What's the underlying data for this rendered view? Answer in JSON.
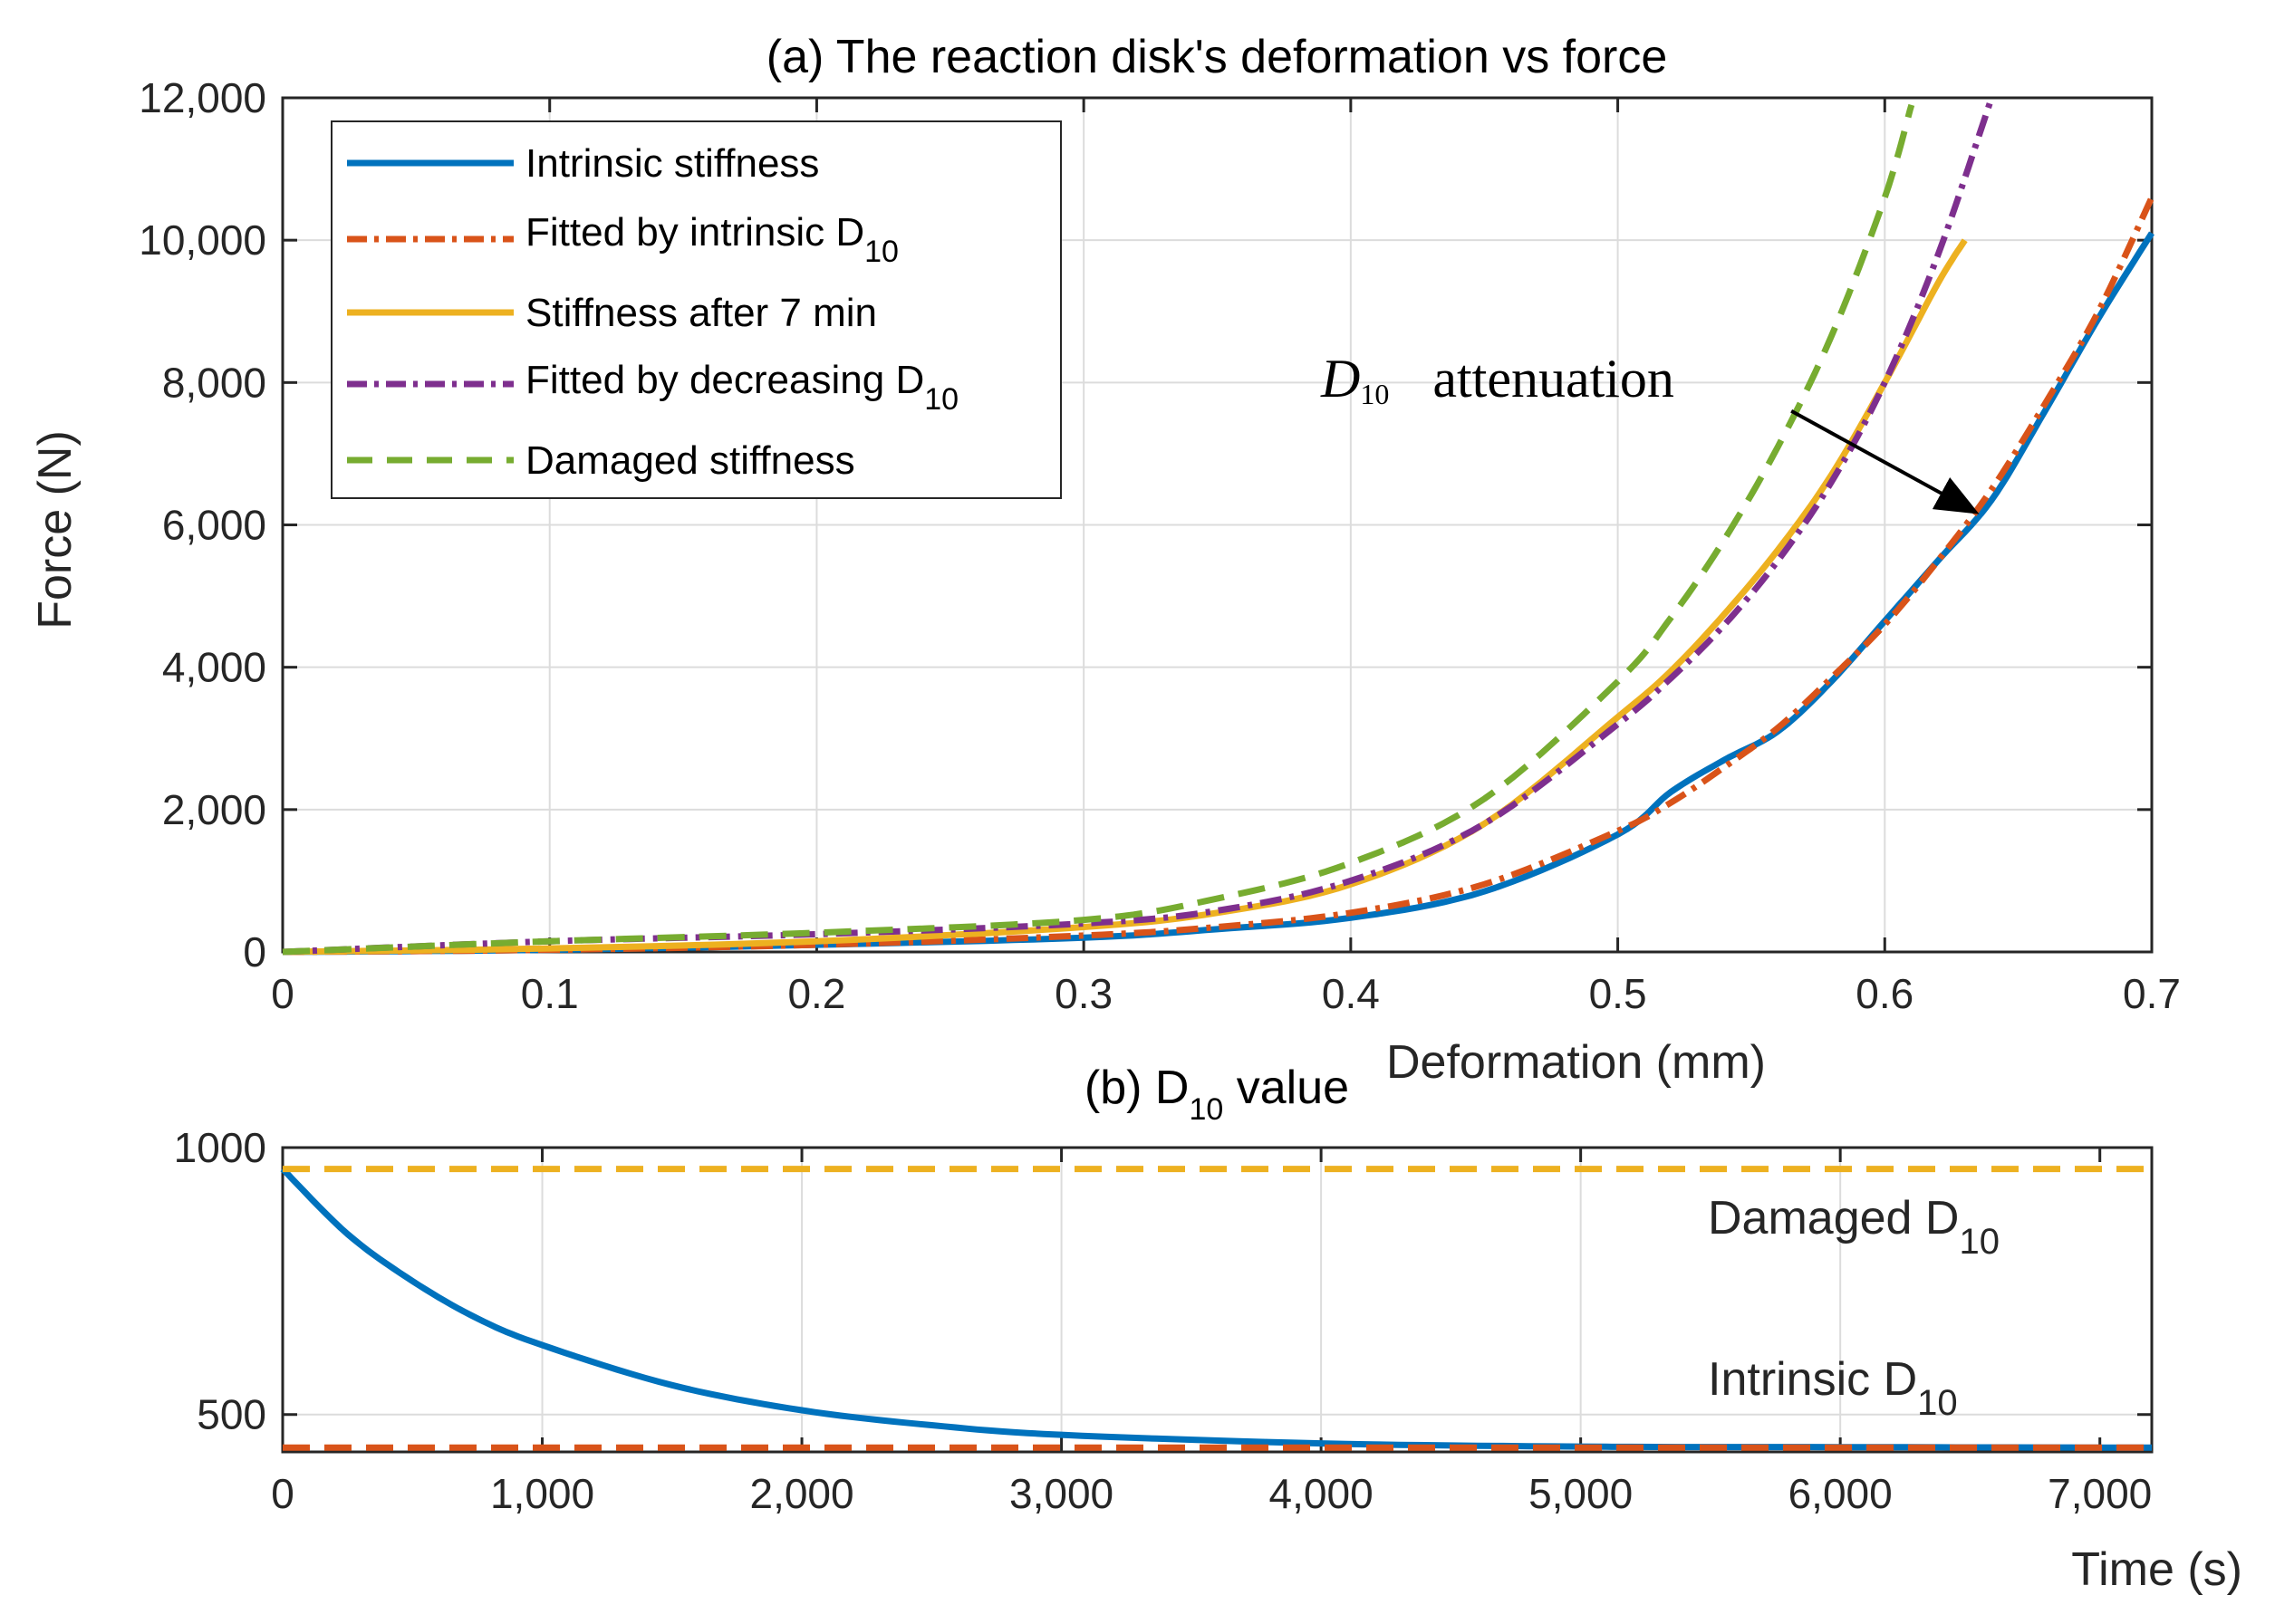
{
  "chart_data": [
    {
      "type": "line",
      "title": "(a) The reaction disk's deformation vs force",
      "xlabel": "Deformation (mm)",
      "ylabel": "Force (N)",
      "xlim": [
        0,
        0.7
      ],
      "ylim": [
        0,
        12000
      ],
      "xticks": [
        0,
        0.1,
        0.2,
        0.3,
        0.4,
        0.5,
        0.6,
        0.7
      ],
      "xtick_labels": [
        "0",
        "0.1",
        "0.2",
        "0.3",
        "0.4",
        "0.5",
        "0.6",
        "0.7"
      ],
      "yticks": [
        0,
        2000,
        4000,
        6000,
        8000,
        10000,
        12000
      ],
      "ytick_labels": [
        "0",
        "2,000",
        "4,000",
        "6,000",
        "8,000",
        "10,000",
        "12,000"
      ],
      "grid": true,
      "legend_position": "top-left",
      "series": [
        {
          "name": "Intrinsic stiffness",
          "label_main": "Intrinsic stiffness",
          "label_sub": "",
          "style": "solid",
          "color": "#0072BD",
          "x": [
            0,
            0.1,
            0.2,
            0.3,
            0.35,
            0.4,
            0.45,
            0.5,
            0.52,
            0.54,
            0.56,
            0.58,
            0.6,
            0.62,
            0.64,
            0.66,
            0.68,
            0.7
          ],
          "y": [
            0,
            30,
            100,
            200,
            320,
            480,
            850,
            1650,
            2250,
            2700,
            3100,
            3800,
            4650,
            5500,
            6350,
            7600,
            8900,
            10100
          ]
        },
        {
          "name": "Fitted by intrinsic D10",
          "label_main": "Fitted by intrinsic D",
          "label_sub": "10",
          "style": "dashdot",
          "color": "#D95319",
          "x": [
            0,
            0.1,
            0.2,
            0.3,
            0.35,
            0.4,
            0.45,
            0.5,
            0.52,
            0.54,
            0.56,
            0.58,
            0.6,
            0.62,
            0.64,
            0.66,
            0.68,
            0.7
          ],
          "y": [
            0,
            30,
            100,
            230,
            350,
            550,
            950,
            1700,
            2100,
            2600,
            3150,
            3850,
            4600,
            5500,
            6500,
            7700,
            9000,
            10600
          ]
        },
        {
          "name": "Stiffness after 7 min",
          "label_main": "Stiffness after 7 min",
          "label_sub": "",
          "style": "solid",
          "color": "#EDB120",
          "x": [
            0,
            0.1,
            0.2,
            0.3,
            0.35,
            0.4,
            0.45,
            0.5,
            0.52,
            0.54,
            0.56,
            0.58,
            0.6,
            0.62,
            0.63
          ],
          "y": [
            0,
            50,
            150,
            350,
            550,
            950,
            1800,
            3300,
            3950,
            4750,
            5650,
            6700,
            8000,
            9400,
            10000
          ]
        },
        {
          "name": "Fitted by decreasing D10",
          "label_main": "Fitted by decreasing D",
          "label_sub": "10",
          "style": "dashdot",
          "color": "#7E2F8E",
          "x": [
            0,
            0.1,
            0.2,
            0.3,
            0.35,
            0.4,
            0.45,
            0.5,
            0.52,
            0.54,
            0.56,
            0.58,
            0.6,
            0.62,
            0.64
          ],
          "y": [
            0,
            150,
            250,
            400,
            580,
            1000,
            1800,
            3200,
            3850,
            4600,
            5500,
            6600,
            8000,
            9800,
            12000
          ]
        },
        {
          "name": "Damaged stiffness",
          "label_main": "Damaged stiffness",
          "label_sub": "",
          "style": "dashed",
          "color": "#77AC30",
          "x": [
            0,
            0.1,
            0.2,
            0.3,
            0.35,
            0.4,
            0.45,
            0.5,
            0.52,
            0.54,
            0.56,
            0.58,
            0.6,
            0.61
          ],
          "y": [
            0,
            150,
            270,
            450,
            750,
            1250,
            2150,
            3800,
            4700,
            5800,
            7100,
            8650,
            10600,
            11900
          ]
        }
      ],
      "annotations": [
        {
          "text_main": "D",
          "text_sub": "10",
          "text_rest": "attenuation",
          "arrow_from": [
            0.565,
            7600
          ],
          "arrow_to": [
            0.633,
            6200
          ]
        }
      ]
    },
    {
      "type": "line",
      "title_main": "(b) D",
      "title_sub": "10",
      "title_rest": " value",
      "xlabel": "Time (s)",
      "ylabel": "",
      "xlim": [
        0,
        7200
      ],
      "ylim": [
        430,
        1000
      ],
      "xticks": [
        0,
        1000,
        2000,
        3000,
        4000,
        5000,
        6000,
        7000
      ],
      "xtick_labels": [
        "0",
        "1,000",
        "2,000",
        "3,000",
        "4,000",
        "5,000",
        "6,000",
        "7,000"
      ],
      "yticks": [
        500,
        1000
      ],
      "ytick_labels": [
        "500",
        "1000"
      ],
      "grid": true,
      "series": [
        {
          "name": "D10 value",
          "style": "solid",
          "color": "#0072BD",
          "x": [
            0,
            250,
            500,
            750,
            1000,
            1500,
            2000,
            2500,
            3000,
            4000,
            5000,
            6000,
            7200
          ],
          "y": [
            960,
            838,
            750,
            680,
            630,
            555,
            508,
            480,
            462,
            446,
            440,
            439,
            438
          ]
        },
        {
          "name": "Damaged D10",
          "style": "dashed",
          "color": "#EDB120",
          "x": [
            0,
            7200
          ],
          "y": [
            960,
            960
          ]
        },
        {
          "name": "Intrinsic D10",
          "style": "dashed",
          "color": "#D95319",
          "x": [
            0,
            7200
          ],
          "y": [
            438,
            438
          ]
        }
      ],
      "annotations": [
        {
          "text_main": "Damaged D",
          "text_sub": "10"
        },
        {
          "text_main": "Intrinsic D",
          "text_sub": "10"
        }
      ]
    }
  ]
}
